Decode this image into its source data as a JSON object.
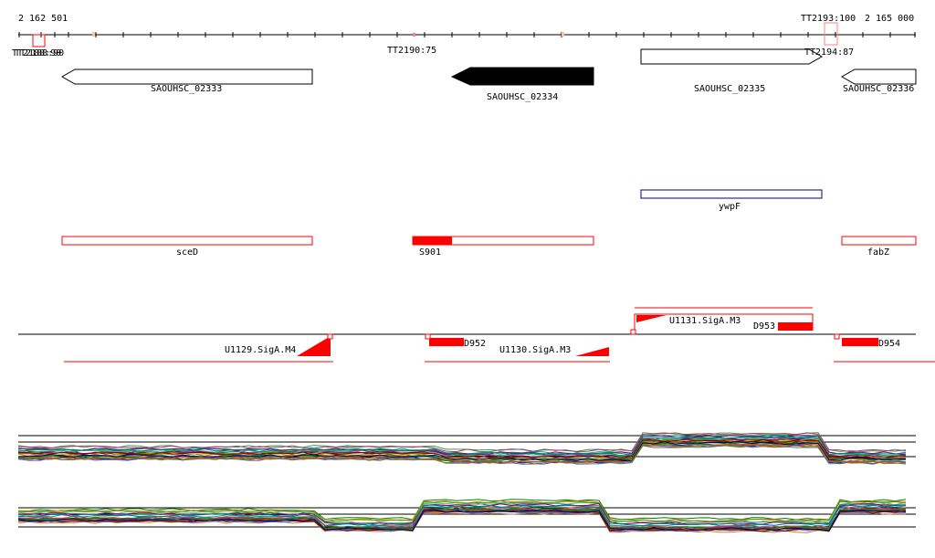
{
  "ruler": {
    "start_label": "2 162 501",
    "end_label": "2 165 000",
    "tick_positions": [
      21,
      45,
      60,
      75,
      105,
      135,
      165,
      195,
      225,
      255,
      285,
      315,
      345,
      375,
      405,
      435,
      465,
      495,
      525,
      555,
      585,
      615,
      645,
      675,
      705,
      735,
      765,
      795,
      825,
      855,
      885,
      915,
      945,
      975,
      1002
    ]
  },
  "terminators": [
    {
      "label": "TT2188:90",
      "pos": 37,
      "label_pos": 38,
      "boxed": true
    },
    {
      "label": "TT2190:75",
      "pos": 454,
      "label_pos": 452,
      "boxed": false
    },
    {
      "label": "TT2193:100",
      "pos": 908,
      "label_pos": 907,
      "boxed": true,
      "above": true
    },
    {
      "label": "TT2194:87",
      "pos": 890,
      "label_pos": 908,
      "boxed": false
    }
  ],
  "genes": [
    {
      "name": "SAOUHSC_02333",
      "start": 68,
      "end": 342,
      "strand": "-",
      "filled": false
    },
    {
      "name": "SAOUHSC_02334",
      "start": 495,
      "end": 650,
      "strand": "-",
      "filled": true
    },
    {
      "name": "SAOUHSC_02335",
      "start": 702,
      "end": 900,
      "strand": "+",
      "filled": false
    },
    {
      "name": "SAOUHSC_02336",
      "start": 922,
      "end": 1003,
      "strand": "-",
      "filled": false
    }
  ],
  "features": [
    {
      "name": "ywpF",
      "start": 702,
      "end": 900,
      "track": "blue"
    },
    {
      "name": "sceD",
      "start": 68,
      "end": 342,
      "track": "red"
    },
    {
      "name": "S901",
      "start": 452,
      "end": 650,
      "filled_end": 495,
      "track": "red"
    },
    {
      "name": "fabZ",
      "start": 922,
      "end": 1003,
      "track": "red"
    }
  ],
  "transcripts": [
    {
      "name": "U1129.SigA.M4",
      "start": 70,
      "end": 365,
      "strand": "-"
    },
    {
      "name": "U1130.SigA.M3",
      "start": 465,
      "end": 668,
      "strand": "-"
    },
    {
      "name": "U1131.SigA.M3",
      "start": 695,
      "end": 890,
      "strand": "+"
    },
    {
      "name": "D952",
      "start": 470,
      "end": 508,
      "strand": "-"
    },
    {
      "name": "D953",
      "start": 852,
      "end": 890,
      "strand": "+"
    },
    {
      "name": "D954",
      "start": 922,
      "end": 962,
      "strand": "-"
    }
  ],
  "colors": {
    "gene_outline": "#000000",
    "feature_blue": "#000080",
    "feature_red": "#ff0000",
    "transcript": "#ff0000"
  }
}
